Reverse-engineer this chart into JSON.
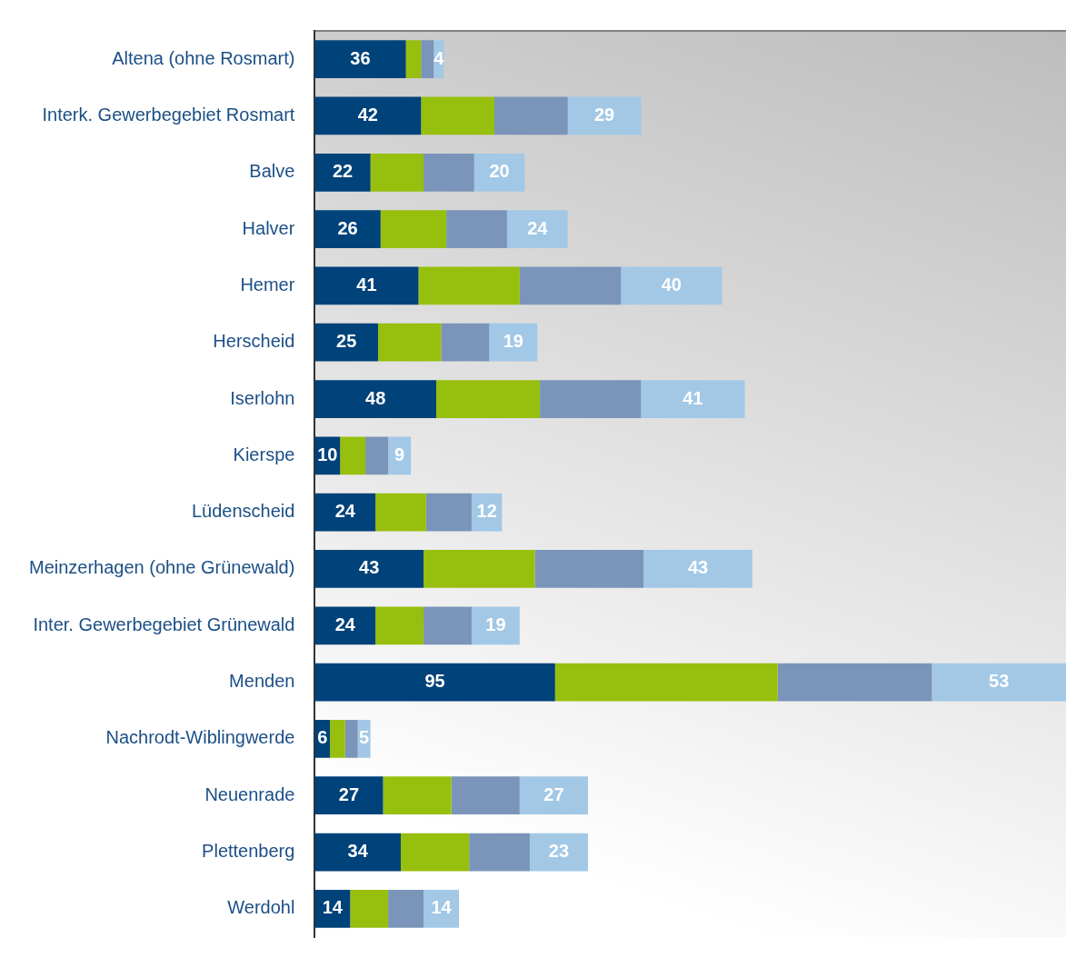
{
  "chart_data": {
    "type": "bar",
    "orientation": "horizontal",
    "stacked": true,
    "legend": false,
    "tick_labels": "y",
    "xlim": [
      0,
      297
    ],
    "categories": [
      "Altena (ohne Rosmart)",
      "Interk. Gewerbegebiet Rosmart",
      "Balve",
      "Halver",
      "Hemer",
      "Herscheid",
      "Iserlohn",
      "Kierspe",
      "Lüdenscheid",
      "Meinzerhagen (ohne Grünewald)",
      "Inter. Gewerbegebiet Grünewald",
      "Menden",
      "Nachrodt-Wiblingwerde",
      "Neuenrade",
      "Plettenberg",
      "Werdohl"
    ],
    "series": [
      {
        "color": "#00427a",
        "values": [
          36,
          42,
          22,
          26,
          41,
          25,
          48,
          10,
          24,
          43,
          24,
          95,
          6,
          27,
          34,
          14
        ],
        "value_labels": [
          "36",
          "42",
          "22",
          "26",
          "41",
          "25",
          "48",
          "10",
          "24",
          "43",
          "24",
          "95",
          "6",
          "27",
          "34",
          "14"
        ]
      },
      {
        "color": "#97bf0d",
        "values": [
          6,
          29,
          21,
          26,
          40,
          25,
          41,
          10,
          20,
          44,
          19,
          88,
          6,
          27,
          27,
          15
        ]
      },
      {
        "color": "#7a95b9",
        "values": [
          5,
          29,
          20,
          24,
          40,
          19,
          40,
          9,
          18,
          43,
          19,
          61,
          5,
          27,
          24,
          14
        ]
      },
      {
        "color": "#a2c8e6",
        "values": [
          4,
          29,
          20,
          24,
          40,
          19,
          41,
          9,
          12,
          43,
          19,
          53,
          5,
          27,
          23,
          14
        ],
        "value_labels": [
          "4",
          "29",
          "20",
          "24",
          "40",
          "19",
          "41",
          "9",
          "12",
          "43",
          "19",
          "53",
          "5",
          "27",
          "23",
          "14"
        ]
      }
    ]
  }
}
